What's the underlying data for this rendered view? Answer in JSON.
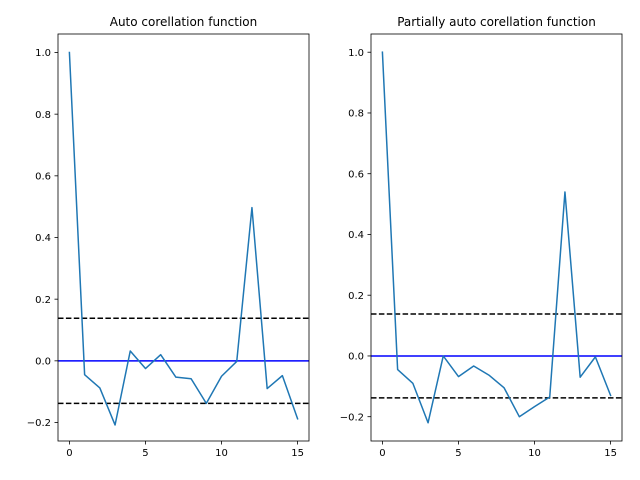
{
  "chart_data": [
    {
      "type": "line",
      "title": "Auto corellation function",
      "xlabel": "",
      "ylabel": "",
      "xlim": [
        -0.75,
        15.75
      ],
      "ylim": [
        -0.26,
        1.06
      ],
      "xticks": [
        0,
        5,
        10,
        15
      ],
      "xtick_labels": [
        "0",
        "5",
        "10",
        "15"
      ],
      "yticks": [
        -0.2,
        0.0,
        0.2,
        0.4,
        0.6,
        0.8,
        1.0
      ],
      "ytick_labels": [
        "−0.2",
        "0.0",
        "0.2",
        "0.4",
        "0.6",
        "0.8",
        "1.0"
      ],
      "grid": false,
      "series": [
        {
          "color": "#1f77b4",
          "x": [
            0,
            1,
            2,
            3,
            4,
            5,
            6,
            7,
            8,
            9,
            10,
            11,
            12,
            13,
            14,
            15
          ],
          "y": [
            1.0,
            -0.045,
            -0.088,
            -0.208,
            0.032,
            -0.025,
            0.02,
            -0.053,
            -0.058,
            -0.138,
            -0.05,
            -0.002,
            0.497,
            -0.09,
            -0.048,
            -0.188
          ]
        }
      ],
      "hlines": [
        {
          "y": 0.0,
          "color": "#0000ff",
          "style": "solid"
        },
        {
          "y": 0.138,
          "color": "#000000",
          "style": "dashed"
        },
        {
          "y": -0.138,
          "color": "#000000",
          "style": "dashed"
        }
      ]
    },
    {
      "type": "line",
      "title": "Partially auto corellation function",
      "xlabel": "",
      "ylabel": "",
      "xlim": [
        -0.75,
        15.75
      ],
      "ylim": [
        -0.28,
        1.06
      ],
      "xticks": [
        0,
        5,
        10,
        15
      ],
      "xtick_labels": [
        "0",
        "5",
        "10",
        "15"
      ],
      "yticks": [
        -0.2,
        0.0,
        0.2,
        0.4,
        0.6,
        0.8,
        1.0
      ],
      "ytick_labels": [
        "−0.2",
        "0.0",
        "0.2",
        "0.4",
        "0.6",
        "0.8",
        "1.0"
      ],
      "grid": false,
      "series": [
        {
          "color": "#1f77b4",
          "x": [
            0,
            1,
            2,
            3,
            4,
            5,
            6,
            7,
            8,
            9,
            10,
            11,
            12,
            13,
            14,
            15
          ],
          "y": [
            1.0,
            -0.045,
            -0.09,
            -0.22,
            0.0,
            -0.068,
            -0.033,
            -0.063,
            -0.105,
            -0.2,
            -0.167,
            -0.135,
            0.54,
            -0.07,
            -0.003,
            -0.13
          ]
        }
      ],
      "hlines": [
        {
          "y": 0.0,
          "color": "#0000ff",
          "style": "solid"
        },
        {
          "y": 0.138,
          "color": "#000000",
          "style": "dashed"
        },
        {
          "y": -0.138,
          "color": "#000000",
          "style": "dashed"
        }
      ]
    }
  ]
}
